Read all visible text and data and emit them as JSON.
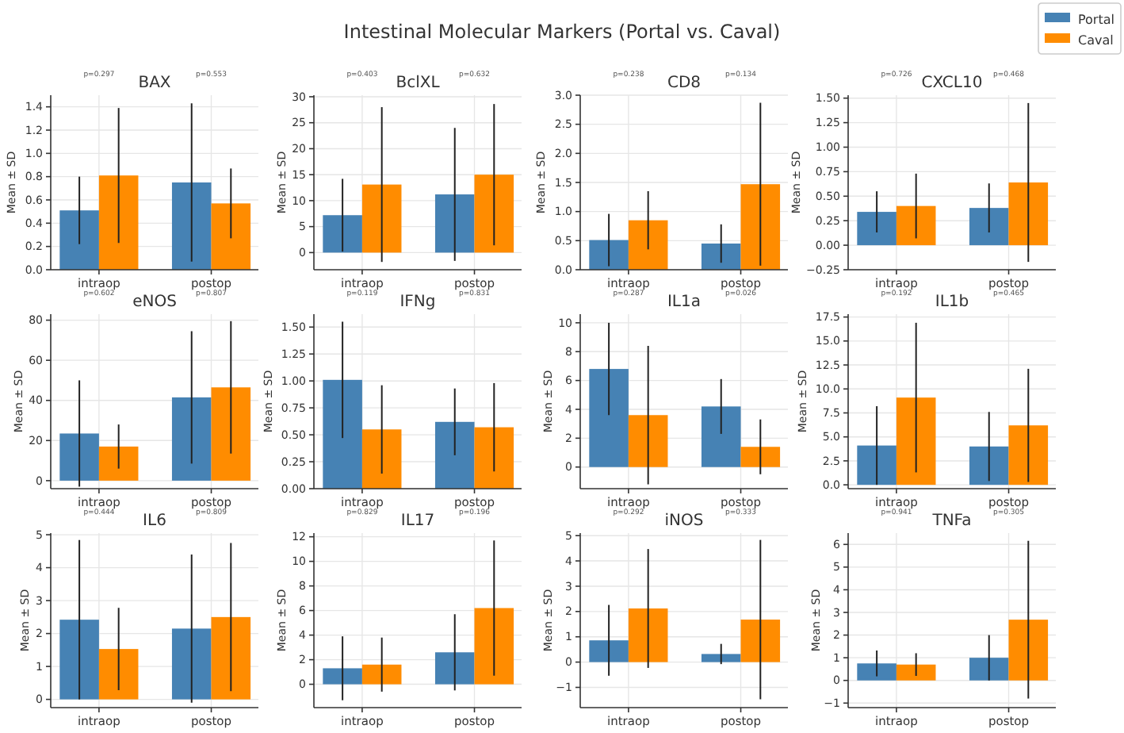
{
  "chart_data": [
    {
      "type": "other",
      "title": "Intestinal Molecular Markers (Portal vs. Caval)"
    },
    {
      "type": "bar",
      "title": "BAX",
      "ylabel": "Mean ± SD",
      "categories": [
        "intraop",
        "postop"
      ],
      "ylim": [
        0,
        1.5
      ],
      "yticks": [
        {
          "value": 0,
          "label": "0.0"
        },
        0.2,
        0.4,
        0.6,
        0.8,
        {
          "value": 1,
          "label": "1.0"
        },
        1.2,
        1.4
      ],
      "grid": true,
      "legend": "top right",
      "series": [
        {
          "name": "Portal",
          "color": "#4682b4",
          "values": [
            0.51,
            0.75
          ],
          "errors": [
            0.29,
            0.68
          ]
        },
        {
          "name": "Caval",
          "color": "#ff8c00",
          "values": [
            0.81,
            0.57
          ],
          "errors": [
            0.58,
            0.3
          ]
        }
      ],
      "annotations": [
        "p=0.297",
        "p=0.553"
      ]
    },
    {
      "type": "bar",
      "title": "BclXL",
      "ylabel": "Mean ± SD",
      "categories": [
        "intraop",
        "postop"
      ],
      "ylim": [
        -3.3,
        30.3
      ],
      "yticks": [
        0,
        5,
        10,
        15,
        20,
        25,
        30
      ],
      "grid": true,
      "series": [
        {
          "color": "#4682b4",
          "values": [
            7.2,
            11.2
          ],
          "errors": [
            7,
            12.8
          ]
        },
        {
          "color": "#ff8c00",
          "values": [
            13.1,
            15
          ],
          "errors": [
            14.9,
            13.6
          ]
        }
      ],
      "annotations": [
        "p=0.403",
        "p=0.632"
      ]
    },
    {
      "type": "bar",
      "title": "CD8",
      "ylabel": "Mean ± SD",
      "categories": [
        "intraop",
        "postop"
      ],
      "ylim": [
        0,
        3
      ],
      "yticks": [
        {
          "value": 0,
          "label": "0.0"
        },
        0.5,
        {
          "value": 1,
          "label": "1.0"
        },
        1.5,
        {
          "value": 2,
          "label": "2.0"
        },
        2.5,
        {
          "value": 3,
          "label": "3.0"
        }
      ],
      "grid": true,
      "series": [
        {
          "color": "#4682b4",
          "values": [
            0.51,
            0.45
          ],
          "errors": [
            0.45,
            0.33
          ]
        },
        {
          "color": "#ff8c00",
          "values": [
            0.85,
            1.47
          ],
          "errors": [
            0.5,
            1.4
          ]
        }
      ],
      "annotations": [
        "p=0.238",
        "p=0.134"
      ]
    },
    {
      "type": "bar",
      "title": "CXCL10",
      "ylabel": "Mean ± SD",
      "categories": [
        "intraop",
        "postop"
      ],
      "ylim": [
        -0.25,
        1.53
      ],
      "yticks": [
        {
          "value": -0.25,
          "label": "−0.25"
        },
        {
          "value": 0,
          "label": "0.00"
        },
        0.25,
        {
          "value": 0.5,
          "label": "0.50"
        },
        0.75,
        {
          "value": 1,
          "label": "1.00"
        },
        1.25,
        {
          "value": 1.5,
          "label": "1.50"
        }
      ],
      "grid": true,
      "series": [
        {
          "color": "#4682b4",
          "values": [
            0.34,
            0.38
          ],
          "errors": [
            0.21,
            0.25
          ]
        },
        {
          "color": "#ff8c00",
          "values": [
            0.4,
            0.64
          ],
          "errors": [
            0.33,
            0.81
          ]
        }
      ],
      "annotations": [
        "p=0.726",
        "p=0.468"
      ]
    },
    {
      "type": "bar",
      "title": "eNOS",
      "ylabel": "Mean ± SD",
      "categories": [
        "intraop",
        "postop"
      ],
      "ylim": [
        -4,
        83
      ],
      "yticks": [
        0,
        20,
        40,
        60,
        80
      ],
      "grid": true,
      "series": [
        {
          "color": "#4682b4",
          "values": [
            23.5,
            41.5
          ],
          "errors": [
            26.5,
            33
          ]
        },
        {
          "color": "#ff8c00",
          "values": [
            17,
            46.5
          ],
          "errors": [
            11,
            33
          ]
        }
      ],
      "annotations": [
        "p=0.602",
        "p=0.807"
      ]
    },
    {
      "type": "bar",
      "title": "IFNg",
      "ylabel": "Mean ± SD",
      "categories": [
        "intraop",
        "postop"
      ],
      "ylim": [
        0,
        1.62
      ],
      "yticks": [
        {
          "value": 0,
          "label": "0.00"
        },
        0.25,
        {
          "value": 0.5,
          "label": "0.50"
        },
        0.75,
        {
          "value": 1,
          "label": "1.00"
        },
        1.25,
        {
          "value": 1.5,
          "label": "1.50"
        }
      ],
      "grid": true,
      "series": [
        {
          "color": "#4682b4",
          "values": [
            1.01,
            0.62
          ],
          "errors": [
            0.54,
            0.31
          ]
        },
        {
          "color": "#ff8c00",
          "values": [
            0.55,
            0.57
          ],
          "errors": [
            0.41,
            0.41
          ]
        }
      ],
      "annotations": [
        "p=0.119",
        "p=0.831"
      ]
    },
    {
      "type": "bar",
      "title": "IL1a",
      "ylabel": "Mean ± SD",
      "categories": [
        "intraop",
        "postop"
      ],
      "ylim": [
        -1.5,
        10.6
      ],
      "yticks": [
        0,
        2,
        4,
        6,
        8,
        10
      ],
      "grid": true,
      "series": [
        {
          "color": "#4682b4",
          "values": [
            6.8,
            4.2
          ],
          "errors": [
            3.2,
            1.9
          ]
        },
        {
          "color": "#ff8c00",
          "values": [
            3.6,
            1.4
          ],
          "errors": [
            4.8,
            1.9
          ]
        }
      ],
      "annotations": [
        "p=0.287",
        "p=0.026"
      ]
    },
    {
      "type": "bar",
      "title": "IL1b",
      "ylabel": "Mean ± SD",
      "categories": [
        "intraop",
        "postop"
      ],
      "ylim": [
        -0.4,
        17.8
      ],
      "yticks": [
        {
          "value": 0,
          "label": "0.0"
        },
        2.5,
        {
          "value": 5,
          "label": "5.0"
        },
        7.5,
        {
          "value": 10,
          "label": "10.0"
        },
        12.5,
        {
          "value": 15,
          "label": "15.0"
        },
        17.5
      ],
      "grid": true,
      "series": [
        {
          "color": "#4682b4",
          "values": [
            4.1,
            4
          ],
          "errors": [
            4.1,
            3.6
          ]
        },
        {
          "color": "#ff8c00",
          "values": [
            9.1,
            6.2
          ],
          "errors": [
            7.8,
            5.9
          ]
        }
      ],
      "annotations": [
        "p=0.192",
        "p=0.465"
      ]
    },
    {
      "type": "bar",
      "title": "IL6",
      "ylabel": "Mean ± SD",
      "categories": [
        "intraop",
        "postop"
      ],
      "ylim": [
        -0.25,
        5.05
      ],
      "yticks": [
        0,
        1,
        2,
        3,
        4,
        5
      ],
      "grid": true,
      "series": [
        {
          "color": "#4682b4",
          "values": [
            2.42,
            2.15
          ],
          "errors": [
            2.42,
            2.25
          ]
        },
        {
          "color": "#ff8c00",
          "values": [
            1.53,
            2.5
          ],
          "errors": [
            1.25,
            2.25
          ]
        }
      ],
      "annotations": [
        "p=0.444",
        "p=0.809"
      ]
    },
    {
      "type": "bar",
      "title": "IL17",
      "ylabel": "Mean ± SD",
      "categories": [
        "intraop",
        "postop"
      ],
      "ylim": [
        -1.9,
        12.3
      ],
      "yticks": [
        0,
        2,
        4,
        6,
        8,
        10,
        12
      ],
      "grid": true,
      "series": [
        {
          "color": "#4682b4",
          "values": [
            1.3,
            2.6
          ],
          "errors": [
            2.6,
            3.1
          ]
        },
        {
          "color": "#ff8c00",
          "values": [
            1.6,
            6.2
          ],
          "errors": [
            2.2,
            5.5
          ]
        }
      ],
      "annotations": [
        "p=0.829",
        "p=0.196"
      ]
    },
    {
      "type": "bar",
      "title": "iNOS",
      "ylabel": "Mean ± SD",
      "categories": [
        "intraop",
        "postop"
      ],
      "ylim": [
        -1.8,
        5.1
      ],
      "yticks": [
        {
          "value": -1,
          "label": "−1"
        },
        0,
        1,
        2,
        3,
        4,
        5
      ],
      "grid": true,
      "series": [
        {
          "color": "#4682b4",
          "values": [
            0.86,
            0.32
          ],
          "errors": [
            1.4,
            0.4
          ]
        },
        {
          "color": "#ff8c00",
          "values": [
            2.12,
            1.68
          ],
          "errors": [
            2.35,
            3.15
          ]
        }
      ],
      "annotations": [
        "p=0.292",
        "p=0.333"
      ]
    },
    {
      "type": "bar",
      "title": "TNFa",
      "ylabel": "Mean ± SD",
      "categories": [
        "intraop",
        "postop"
      ],
      "ylim": [
        -1.2,
        6.5
      ],
      "yticks": [
        {
          "value": -1,
          "label": "−1"
        },
        0,
        1,
        2,
        3,
        4,
        5,
        6
      ],
      "grid": true,
      "series": [
        {
          "color": "#4682b4",
          "values": [
            0.75,
            1
          ],
          "errors": [
            0.57,
            1
          ]
        },
        {
          "color": "#ff8c00",
          "values": [
            0.7,
            2.68
          ],
          "errors": [
            0.5,
            3.48
          ]
        }
      ],
      "annotations": [
        "p=0.941",
        "p=0.305"
      ]
    }
  ]
}
